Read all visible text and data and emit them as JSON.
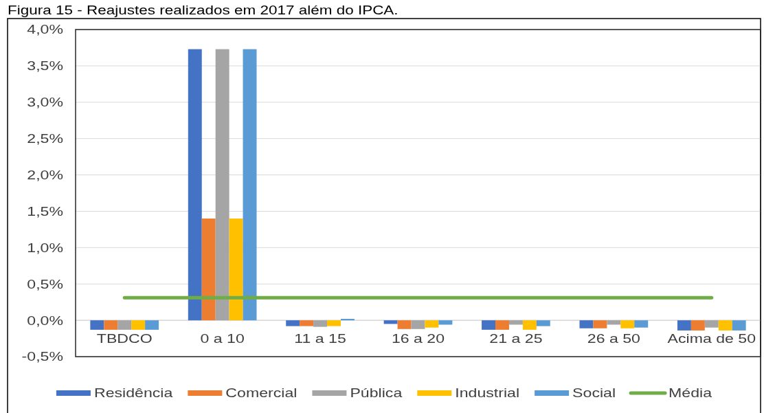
{
  "chart_data": {
    "type": "bar",
    "title": "Figura 15 - Reajustes realizados em 2017 além do IPCA.",
    "categories": [
      "TBDCO",
      "0 a 10",
      "11 a 15",
      "16 a 20",
      "21 a 25",
      "26 a 50",
      "Acima de 50"
    ],
    "series": [
      {
        "name": "Residência",
        "color": "#4472c4",
        "values": [
          -0.13,
          3.73,
          -0.08,
          -0.05,
          -0.13,
          -0.11,
          -0.14
        ]
      },
      {
        "name": "Comercial",
        "color": "#ed7d31",
        "values": [
          -0.13,
          1.4,
          -0.08,
          -0.12,
          -0.13,
          -0.11,
          -0.14
        ]
      },
      {
        "name": "Pública",
        "color": "#a5a5a5",
        "values": [
          -0.13,
          3.73,
          -0.09,
          -0.12,
          -0.06,
          -0.06,
          -0.1
        ]
      },
      {
        "name": "Industrial",
        "color": "#ffc000",
        "values": [
          -0.13,
          1.4,
          -0.08,
          -0.1,
          -0.13,
          -0.11,
          -0.14
        ]
      },
      {
        "name": "Social",
        "color": "#5b9bd5",
        "values": [
          -0.13,
          3.73,
          0.02,
          -0.06,
          -0.08,
          -0.1,
          -0.14
        ]
      },
      {
        "name": "Média",
        "type": "line",
        "color": "#70ad47",
        "values": [
          0.31,
          0.31,
          0.31,
          0.31,
          0.31,
          0.31,
          0.31
        ]
      }
    ],
    "ylim": [
      -0.5,
      4
    ],
    "yticks": [
      {
        "value": -0.5,
        "label": "-0,5%"
      },
      {
        "value": 0,
        "label": "0,0%"
      },
      {
        "value": 0.5,
        "label": "0,5%"
      },
      {
        "value": 1,
        "label": "1,0%"
      },
      {
        "value": 1.5,
        "label": "1,5%"
      },
      {
        "value": 2,
        "label": "2,0%"
      },
      {
        "value": 2.5,
        "label": "2,5%"
      },
      {
        "value": 3,
        "label": "3,0%"
      },
      {
        "value": 3.5,
        "label": "3,5%"
      },
      {
        "value": 4,
        "label": "4,0%"
      }
    ],
    "grid": "y",
    "legend": "bottom"
  }
}
